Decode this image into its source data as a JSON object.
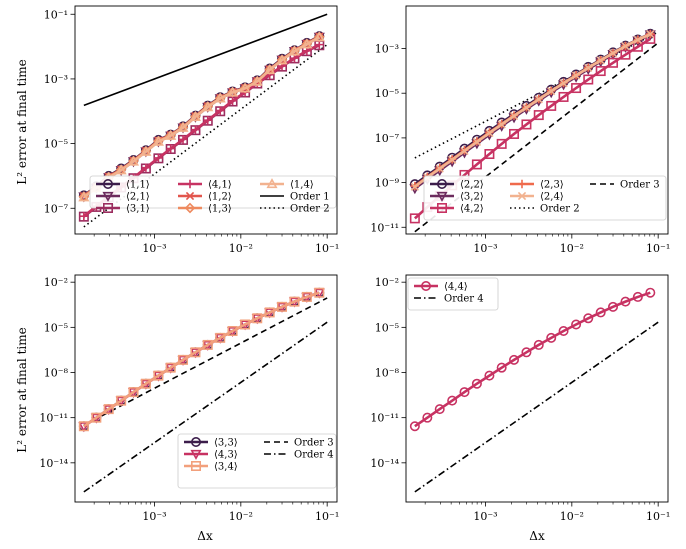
{
  "ylabel_top": "L² error at final time",
  "ylabel_bottom": "L² error at final time",
  "xlabel": "Δx",
  "chart_data": [
    {
      "type": "line",
      "xscale": "log",
      "yscale": "log",
      "xlim": [
        0.00012,
        0.13
      ],
      "ylim": [
        1.6e-08,
        0.18
      ],
      "x": [
        0.000152,
        0.000212,
        0.000295,
        0.000411,
        0.000571,
        0.000795,
        0.00111,
        0.00154,
        0.00214,
        0.00298,
        0.00414,
        0.00577,
        0.00802,
        0.0112,
        0.0155,
        0.0216,
        0.03,
        0.0418,
        0.0582,
        0.0811
      ],
      "xticks": [
        0.001,
        0.01,
        0.1
      ],
      "xtick_labels": [
        "10⁻³",
        "10⁻²",
        "10⁻¹"
      ],
      "yticks": [
        1e-07,
        1e-05,
        0.001,
        0.1
      ],
      "ytick_labels": [
        "10⁻⁷",
        "10⁻⁵",
        "10⁻³",
        "10⁻¹"
      ],
      "legend": {
        "position": "lower-right",
        "columns": 3
      },
      "series": [
        {
          "name": "⟨1,1⟩",
          "marker": "circle",
          "color": "#3c1d4b",
          "style": "solid",
          "values": [
            2.5e-07,
            4.8e-07,
            1e-06,
            1.7e-06,
            3.1e-06,
            6.2e-06,
            1.3e-05,
            1.9e-05,
            3.4e-05,
            7.3e-05,
            0.00015,
            0.00027,
            0.00041,
            0.00055,
            0.0009,
            0.0021,
            0.0042,
            0.0077,
            0.013,
            0.021
          ]
        },
        {
          "name": "⟨2,1⟩",
          "marker": "triangle-down",
          "color": "#6c2b5d",
          "style": "solid",
          "values": [
            2.3e-07,
            4.3e-07,
            9e-07,
            1.5e-06,
            2.8e-06,
            5.7e-06,
            1.15e-05,
            1.75e-05,
            3.1e-05,
            6.7e-05,
            0.000135,
            0.00025,
            0.00038,
            0.00051,
            0.00084,
            0.0019,
            0.0039,
            0.0072,
            0.012,
            0.02
          ]
        },
        {
          "name": "⟨3,1⟩",
          "marker": "square",
          "color": "#9b2d5f",
          "style": "solid",
          "values": [
            5.5e-08,
            1.1e-07,
            2.2e-07,
            4.4e-07,
            8.5e-07,
            1.7e-06,
            3.5e-06,
            6.8e-06,
            1.3e-05,
            2.6e-05,
            5.1e-05,
            0.0001,
            0.0002,
            0.00038,
            0.00072,
            0.0013,
            0.0024,
            0.0043,
            0.0072,
            0.011
          ]
        },
        {
          "name": "⟨4,1⟩",
          "marker": "plus",
          "color": "#c73262",
          "style": "solid",
          "values": [
            5.7e-08,
            1.15e-07,
            2.3e-07,
            4.6e-07,
            8.8e-07,
            1.8e-06,
            3.6e-06,
            7e-06,
            1.35e-05,
            2.7e-05,
            5.3e-05,
            0.000105,
            0.00021,
            0.00039,
            0.00074,
            0.00135,
            0.0025,
            0.0044,
            0.0074,
            0.0115
          ]
        },
        {
          "name": "⟨1,2⟩",
          "marker": "x",
          "color": "#e2564d",
          "style": "solid",
          "values": [
            2.4e-07,
            4.6e-07,
            9.6e-07,
            1.6e-06,
            3e-06,
            6e-06,
            1.25e-05,
            1.85e-05,
            3.3e-05,
            7.1e-05,
            0.000145,
            0.00026,
            0.0004,
            0.00053,
            0.00087,
            0.002,
            0.004,
            0.0075,
            0.0125,
            0.0205
          ]
        },
        {
          "name": "⟨1,3⟩",
          "marker": "diamond",
          "color": "#ee8a5f",
          "style": "solid",
          "values": [
            2.3e-07,
            4.4e-07,
            9.2e-07,
            1.55e-06,
            2.9e-06,
            5.8e-06,
            1.2e-05,
            1.8e-05,
            3.2e-05,
            6.9e-05,
            0.00014,
            0.000255,
            0.00039,
            0.00052,
            0.00085,
            0.00195,
            0.0039,
            0.0073,
            0.0122,
            0.02
          ]
        },
        {
          "name": "⟨1,4⟩",
          "marker": "triangle-up",
          "color": "#f2b28f",
          "style": "solid",
          "values": [
            2.2e-07,
            4.2e-07,
            8.9e-07,
            1.5e-06,
            2.8e-06,
            5.6e-06,
            1.15e-05,
            1.75e-05,
            3.1e-05,
            6.7e-05,
            0.000135,
            0.00025,
            0.00038,
            0.00051,
            0.00083,
            0.0019,
            0.0038,
            0.0071,
            0.0118,
            0.0195
          ]
        }
      ],
      "reference_lines": [
        {
          "name": "Order 1",
          "style": "solid",
          "order": 1,
          "y_at_x_max": 0.1
        },
        {
          "name": "Order 2",
          "style": "dotted",
          "order": 2,
          "y_at_x_max": 0.0115
        }
      ]
    },
    {
      "type": "line",
      "xscale": "log",
      "yscale": "log",
      "xlim": [
        0.00012,
        0.13
      ],
      "ylim": [
        5e-12,
        0.08
      ],
      "x": [
        0.000152,
        0.000212,
        0.000295,
        0.000411,
        0.000571,
        0.000795,
        0.00111,
        0.00154,
        0.00214,
        0.00298,
        0.00414,
        0.00577,
        0.00802,
        0.0112,
        0.0155,
        0.0216,
        0.03,
        0.0418,
        0.0582,
        0.0811
      ],
      "xticks": [
        0.001,
        0.01,
        0.1
      ],
      "xtick_labels": [
        "10⁻³",
        "10⁻²",
        "10⁻¹"
      ],
      "yticks": [
        1e-11,
        1e-09,
        1e-07,
        1e-05,
        0.001
      ],
      "ytick_labels": [
        "10⁻¹¹",
        "10⁻⁹",
        "10⁻⁷",
        "10⁻⁵",
        "10⁻³"
      ],
      "legend": {
        "position": "lower-right",
        "columns": 3
      },
      "series": [
        {
          "name": "⟨2,2⟩",
          "marker": "circle",
          "color": "#3c1d4b",
          "style": "solid",
          "values": [
            8.5e-10,
            2.1e-09,
            5.2e-09,
            1.3e-08,
            3.3e-08,
            8.3e-08,
            2.05e-07,
            4.9e-07,
            1.15e-06,
            2.7e-06,
            6.3e-06,
            1.45e-05,
            3.2e-05,
            6.9e-05,
            0.00015,
            0.00032,
            0.00067,
            0.00135,
            0.00255,
            0.0046
          ]
        },
        {
          "name": "⟨3,2⟩",
          "marker": "triangle-down",
          "color": "#6c2b5d",
          "style": "solid",
          "values": [
            5.5e-10,
            1.4e-09,
            3.5e-09,
            8.8e-09,
            2.2e-08,
            5.6e-08,
            1.4e-07,
            3.4e-07,
            8.2e-07,
            1.95e-06,
            4.6e-06,
            1.08e-05,
            2.45e-05,
            5.4e-05,
            0.00012,
            0.00026,
            0.00056,
            0.00116,
            0.00225,
            0.0042
          ]
        },
        {
          "name": "⟨4,2⟩",
          "marker": "square",
          "color": "#c73262",
          "style": "solid",
          "values": [
            2.5e-11,
            8e-11,
            2.5e-10,
            7.5e-10,
            2.2e-09,
            6.5e-09,
            1.9e-08,
            5.4e-08,
            1.5e-07,
            4e-07,
            1.05e-06,
            2.7e-06,
            6.8e-06,
            1.7e-05,
            4.1e-05,
            9.8e-05,
            0.00023,
            0.00053,
            0.0012,
            0.0027
          ]
        },
        {
          "name": "⟨2,3⟩",
          "marker": "plus",
          "color": "#ef6a4c",
          "style": "solid",
          "values": [
            7e-10,
            1.8e-09,
            4.5e-09,
            1.1e-08,
            2.8e-08,
            7e-08,
            1.75e-07,
            4.2e-07,
            1e-06,
            2.35e-06,
            5.5e-06,
            1.28e-05,
            2.9e-05,
            6.4e-05,
            0.00014,
            0.0003,
            0.00063,
            0.0013,
            0.0025,
            0.0045
          ]
        },
        {
          "name": "⟨2,4⟩",
          "marker": "x",
          "color": "#f2b28f",
          "style": "solid",
          "values": [
            6.5e-10,
            1.7e-09,
            4.2e-09,
            1.05e-08,
            2.6e-08,
            6.6e-08,
            1.65e-07,
            4e-07,
            9.6e-07,
            2.25e-06,
            5.3e-06,
            1.24e-05,
            2.8e-05,
            6.2e-05,
            0.000136,
            0.000295,
            0.00062,
            0.00128,
            0.00245,
            0.0044
          ]
        }
      ],
      "reference_lines": [
        {
          "name": "Order 2",
          "style": "dotted",
          "order": 2,
          "y_at_x_max": 0.0055
        },
        {
          "name": "Order 3",
          "style": "dashed",
          "order": 3,
          "y_at_x_max": 0.0018
        }
      ]
    },
    {
      "type": "line",
      "xscale": "log",
      "yscale": "log",
      "xlim": [
        0.00012,
        0.13
      ],
      "ylim": [
        2.5e-17,
        0.03
      ],
      "x": [
        0.000152,
        0.000212,
        0.000295,
        0.000411,
        0.000571,
        0.000795,
        0.00111,
        0.00154,
        0.00214,
        0.00298,
        0.00414,
        0.00577,
        0.00802,
        0.0112,
        0.0155,
        0.0216,
        0.03,
        0.0418,
        0.0582,
        0.0811
      ],
      "xticks": [
        0.001,
        0.01,
        0.1
      ],
      "xtick_labels": [
        "10⁻³",
        "10⁻²",
        "10⁻¹"
      ],
      "yticks": [
        1e-14,
        1e-11,
        1e-08,
        1e-05,
        0.01
      ],
      "ytick_labels": [
        "10⁻¹⁴",
        "10⁻¹¹",
        "10⁻⁸",
        "10⁻⁵",
        "10⁻²"
      ],
      "legend": {
        "position": "lower-right",
        "columns": 2
      },
      "series": [
        {
          "name": "⟨3,3⟩",
          "marker": "circle",
          "color": "#3c1d4b",
          "style": "solid",
          "values": [
            2.7e-12,
            1e-11,
            3.7e-11,
            1.35e-10,
            5e-10,
            1.8e-09,
            6.2e-09,
            2.1e-08,
            6.9e-08,
            2.2e-07,
            6.8e-07,
            2e-06,
            5.7e-06,
            1.55e-05,
            4e-05,
            9.8e-05,
            0.00023,
            0.00051,
            0.00105,
            0.002
          ]
        },
        {
          "name": "⟨4,3⟩",
          "marker": "triangle-down",
          "color": "#c73262",
          "style": "solid",
          "values": [
            2.65e-12,
            9.8e-12,
            3.6e-11,
            1.32e-10,
            4.9e-10,
            1.75e-09,
            6.1e-09,
            2.05e-08,
            6.8e-08,
            2.15e-07,
            6.7e-07,
            1.98e-06,
            5.6e-06,
            1.53e-05,
            3.95e-05,
            9.7e-05,
            0.000228,
            0.000505,
            0.00104,
            0.00198
          ]
        },
        {
          "name": "⟨3,4⟩",
          "marker": "square",
          "color": "#f2a07c",
          "style": "solid",
          "values": [
            2.7e-12,
            1e-11,
            3.7e-11,
            1.35e-10,
            5e-10,
            1.8e-09,
            6.2e-09,
            2.1e-08,
            6.9e-08,
            2.2e-07,
            6.8e-07,
            2e-06,
            5.7e-06,
            1.55e-05,
            4e-05,
            9.8e-05,
            0.00023,
            0.00051,
            0.00105,
            0.002
          ]
        }
      ],
      "reference_lines": [
        {
          "name": "Order 3",
          "style": "dashed",
          "order": 3,
          "y_at_x_max": 0.0009
        },
        {
          "name": "Order 4",
          "style": "dashdot",
          "order": 4,
          "y_at_x_max": 2.2e-05
        }
      ]
    },
    {
      "type": "line",
      "xscale": "log",
      "yscale": "log",
      "xlim": [
        0.00012,
        0.13
      ],
      "ylim": [
        2.5e-17,
        0.03
      ],
      "x": [
        0.000152,
        0.000212,
        0.000295,
        0.000411,
        0.000571,
        0.000795,
        0.00111,
        0.00154,
        0.00214,
        0.00298,
        0.00414,
        0.00577,
        0.00802,
        0.0112,
        0.0155,
        0.0216,
        0.03,
        0.0418,
        0.0582,
        0.0811
      ],
      "xticks": [
        0.001,
        0.01,
        0.1
      ],
      "xtick_labels": [
        "10⁻³",
        "10⁻²",
        "10⁻¹"
      ],
      "yticks": [
        1e-14,
        1e-11,
        1e-08,
        1e-05,
        0.01
      ],
      "ytick_labels": [
        "10⁻¹⁴",
        "10⁻¹¹",
        "10⁻⁸",
        "10⁻⁵",
        "10⁻²"
      ],
      "legend": {
        "position": "upper-left",
        "columns": 1
      },
      "series": [
        {
          "name": "⟨4,4⟩",
          "marker": "circle",
          "color": "#c73262",
          "style": "solid",
          "values": [
            2.7e-12,
            1e-11,
            3.7e-11,
            1.35e-10,
            5e-10,
            1.8e-09,
            6.2e-09,
            2.1e-08,
            6.9e-08,
            2.2e-07,
            6.8e-07,
            2e-06,
            5.7e-06,
            1.55e-05,
            4e-05,
            9.8e-05,
            0.00023,
            0.00051,
            0.00105,
            0.002
          ]
        }
      ],
      "reference_lines": [
        {
          "name": "Order 4",
          "style": "dashdot",
          "order": 4,
          "y_at_x_max": 2.2e-05
        }
      ]
    }
  ]
}
